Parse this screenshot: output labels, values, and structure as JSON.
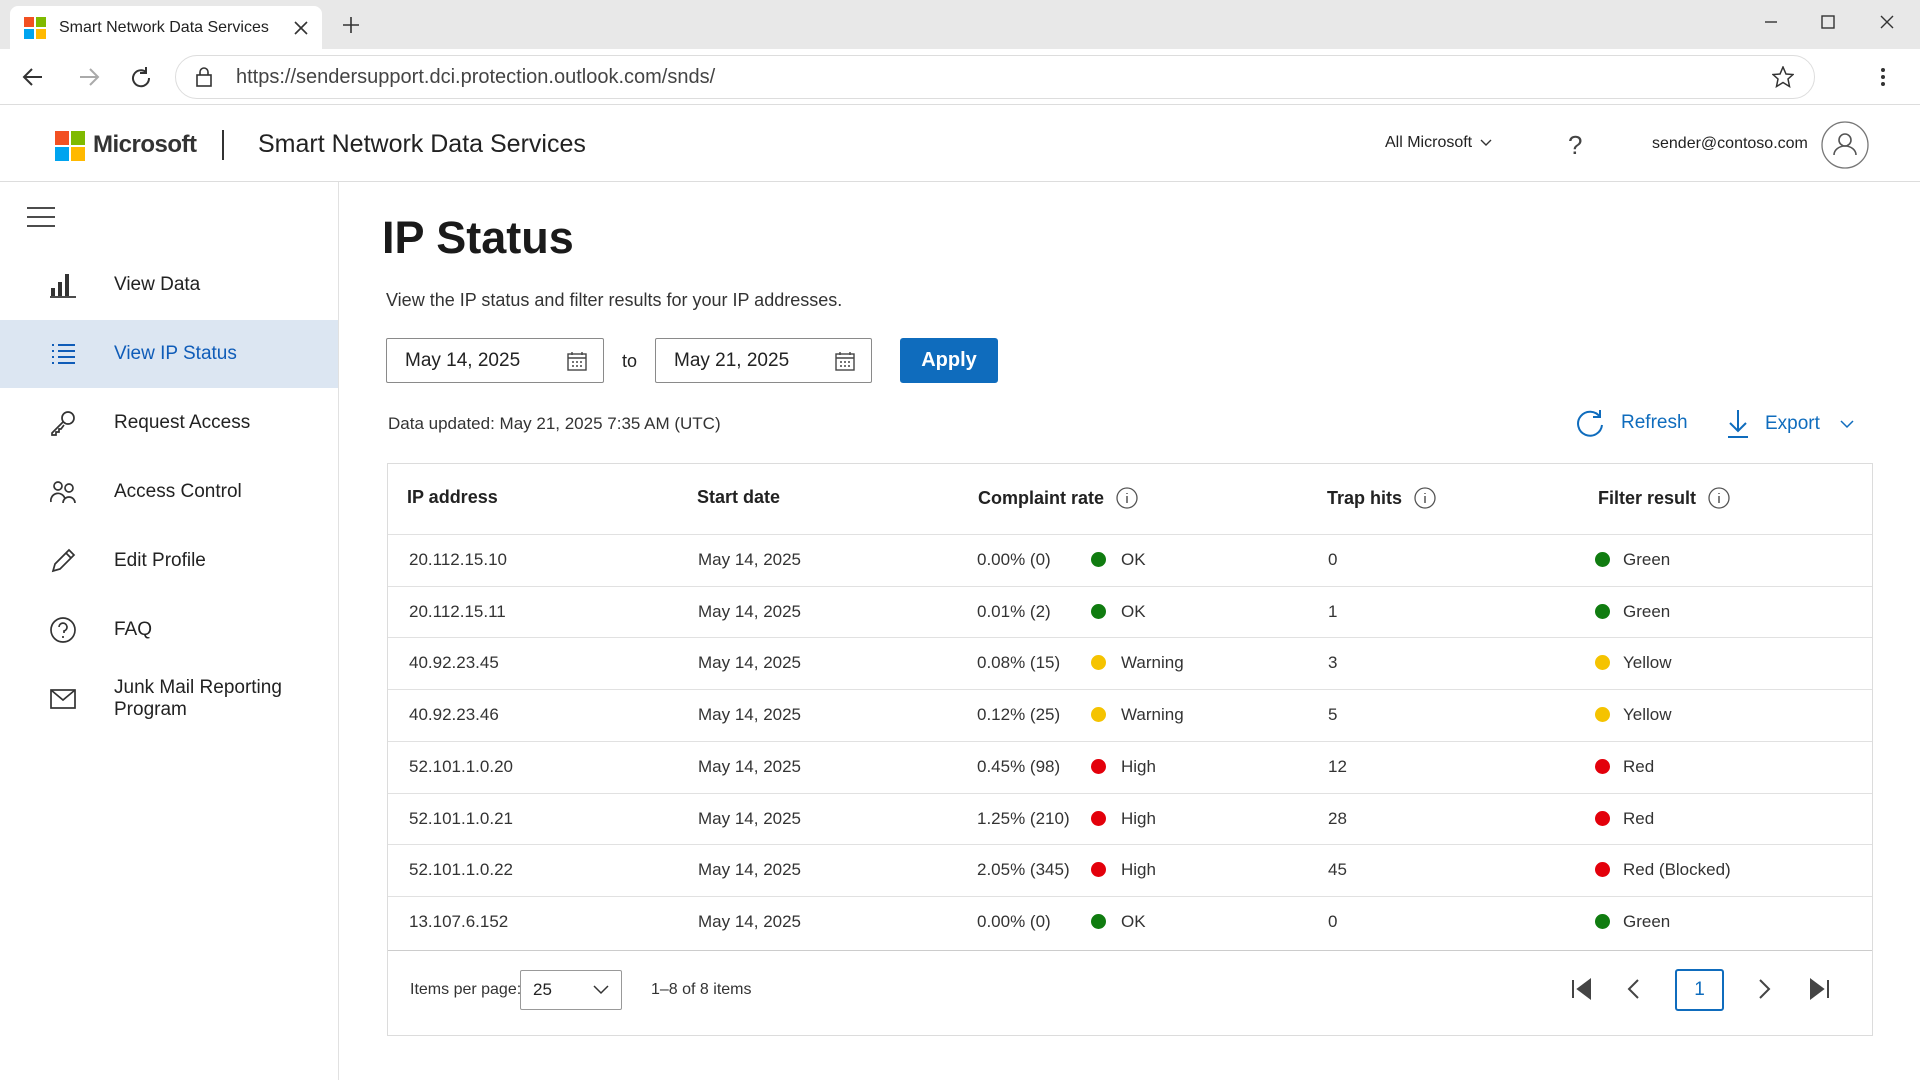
{
  "browser": {
    "tab_title": "Smart Network Data Services",
    "url": "https://sendersupport.dci.protection.outlook.com/snds/"
  },
  "header": {
    "brand": "Microsoft",
    "app_title": "Smart Network Data Services",
    "menu": "All Microsoft",
    "help": "?",
    "user": "sender@contoso.com"
  },
  "sidebar": {
    "items": [
      "View Data",
      "View IP Status",
      "Request Access",
      "Access Control",
      "Edit Profile",
      "FAQ",
      "Junk Mail Reporting Program"
    ],
    "selected": 1
  },
  "page": {
    "title": "IP Status",
    "description": "View the IP status and filter results for your IP addresses.",
    "date_from": "May 14, 2025",
    "to": "to",
    "date_to": "May 21, 2025",
    "apply": "Apply",
    "data_updated": "Data updated: May 21, 2025 7:35 AM (UTC)",
    "refresh": "Refresh",
    "export": "Export"
  },
  "table": {
    "columns": [
      "IP address",
      "Start date",
      "Complaint rate",
      "Trap hits",
      "Filter result"
    ],
    "status_colors": {
      "OK": "#107c10",
      "Warning": "#f5c300",
      "High": "#e3000b"
    },
    "rows": [
      [
        "20.112.15.10",
        "May 14, 2025",
        "0.00% (0)",
        "OK",
        0,
        "Green"
      ],
      [
        "20.112.15.11",
        "May 14, 2025",
        "0.01% (2)",
        "OK",
        1,
        "Green"
      ],
      [
        "40.92.23.45",
        "May 14, 2025",
        "0.08% (15)",
        "Warning",
        3,
        "Yellow"
      ],
      [
        "40.92.23.46",
        "May 14, 2025",
        "0.12% (25)",
        "Warning",
        5,
        "Yellow"
      ],
      [
        "52.101.1.0.20",
        "May 14, 2025",
        "0.45% (98)",
        "High",
        12,
        "Red"
      ],
      [
        "52.101.1.0.21",
        "May 14, 2025",
        "1.25% (210)",
        "High",
        28,
        "Red"
      ],
      [
        "52.101.1.0.22",
        "May 14, 2025",
        "2.05% (345)",
        "High",
        45,
        "Red (Blocked)"
      ],
      [
        "13.107.6.152",
        "May 14, 2025",
        "0.00% (0)",
        "OK",
        0,
        "Green"
      ]
    ]
  },
  "pagination": {
    "items_per_page_label": "Items per page:",
    "items_per_page": "25",
    "range": "1–8 of 8 items",
    "page": "1"
  }
}
